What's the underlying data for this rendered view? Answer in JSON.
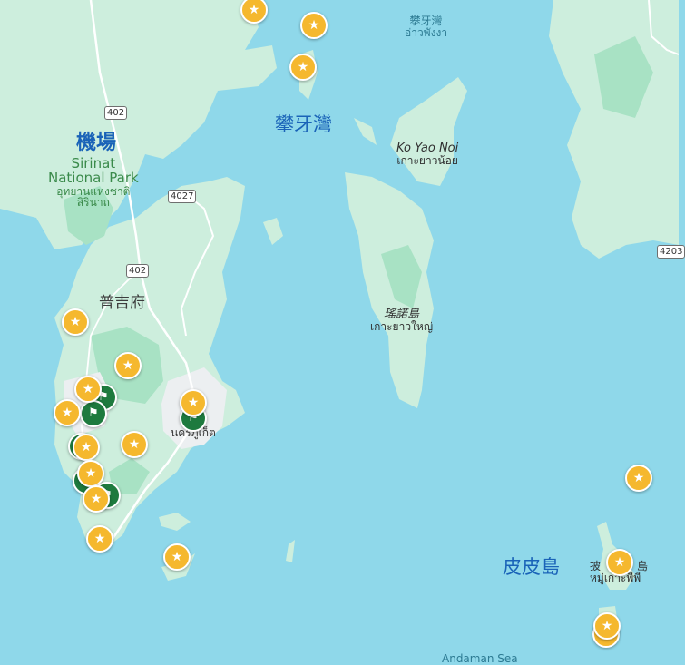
{
  "colors": {
    "sea": "#8fd8ea",
    "land": "#cdeedd",
    "forest": "#a8e2c4",
    "urban": "#eceff1",
    "road": "#ffffff",
    "marker_star": "#f5b82e",
    "marker_flag": "#1e7a3e"
  },
  "labels": {
    "phang_nga_bay_cjk": "攀牙灣",
    "phang_nga_bay_small_cjk": "攀牙灣",
    "phang_nga_bay_thai": "อ่าวพังงา",
    "airport": "機場",
    "park_en_1": "Sirinat",
    "park_en_2": "National Park",
    "park_th_1": "อุทยานแห่งชาติ",
    "park_th_2": "สิรินาถ",
    "ko_yao_noi_en": "Ko Yao Noi",
    "ko_yao_noi_th": "เกาะยาวน้อย",
    "ko_yao_yai_cjk": "瑤諾島",
    "ko_yao_yai_th": "เกาะยาวใหญ่",
    "phuket_cjk": "普吉府",
    "phuket_town_th": "นครภูเก็ต",
    "phi_phi_cjk": "皮皮島",
    "phi_phi_small_cjk_1": "披",
    "phi_phi_small_cjk_2": "島",
    "phi_phi_th": "หมู่เกาะพีพี",
    "andaman_sea": "Andaman Sea"
  },
  "road_shields": {
    "r402_north": "402",
    "r4027": "4027",
    "r402_south": "402",
    "r4203": "4203"
  },
  "marker_icons": {
    "star": "★",
    "flag": "⚑"
  },
  "markers": [
    {
      "type": "star",
      "name": "marker-north-coast"
    },
    {
      "type": "star",
      "name": "marker-north-island-1"
    },
    {
      "type": "star",
      "name": "marker-north-island-2"
    },
    {
      "type": "star",
      "name": "marker-west-coast-1"
    },
    {
      "type": "star",
      "name": "marker-inland-1"
    },
    {
      "type": "star",
      "name": "marker-west-coast-2"
    },
    {
      "type": "flag",
      "name": "marker-flag-1"
    },
    {
      "type": "flag",
      "name": "marker-flag-2"
    },
    {
      "type": "star",
      "name": "marker-west-coast-3"
    },
    {
      "type": "star",
      "name": "marker-town"
    },
    {
      "type": "flag",
      "name": "marker-town-flag"
    },
    {
      "type": "star",
      "name": "marker-inland-2"
    },
    {
      "type": "flag",
      "name": "marker-flag-3"
    },
    {
      "type": "star",
      "name": "marker-west-coast-4"
    },
    {
      "type": "flag",
      "name": "marker-flag-4"
    },
    {
      "type": "star",
      "name": "marker-west-coast-5"
    },
    {
      "type": "flag",
      "name": "marker-flag-5"
    },
    {
      "type": "star",
      "name": "marker-west-coast-6"
    },
    {
      "type": "star",
      "name": "marker-south-tip"
    },
    {
      "type": "star",
      "name": "marker-south-island"
    },
    {
      "type": "star",
      "name": "marker-east-sea"
    },
    {
      "type": "star",
      "name": "marker-phi-phi-1"
    },
    {
      "type": "star",
      "name": "marker-phi-phi-2"
    },
    {
      "type": "star",
      "name": "marker-phi-phi-3"
    }
  ]
}
